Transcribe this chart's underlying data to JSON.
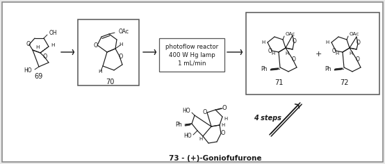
{
  "figsize": [
    5.54,
    2.36
  ],
  "dpi": 100,
  "bg_color": "#e8e8e8",
  "box_color": "#ffffff",
  "border_lw": 1.2,
  "reactor_text": "photoflow reactor\n400 W Hg lamp\n1 mL/min",
  "steps_text": "4 steps",
  "label_69": "69",
  "label_70": "70",
  "label_71": "71",
  "label_72": "72",
  "label_73": "73 - (+)-Goniofufurone",
  "plus_text": "+",
  "line_color": "#1a1a1a",
  "text_color": "#1a1a1a"
}
